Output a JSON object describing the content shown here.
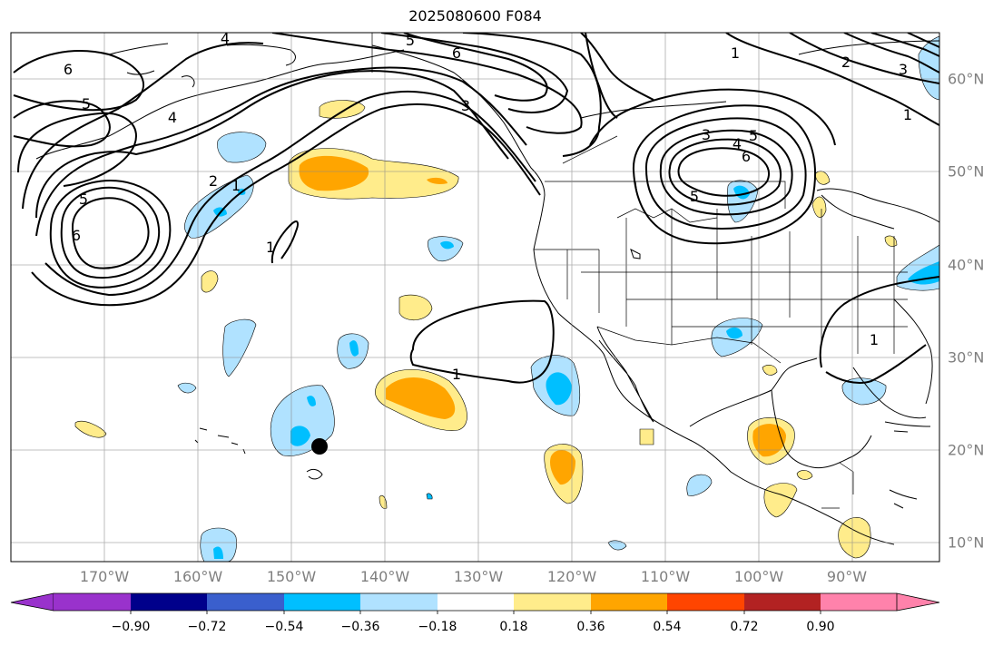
{
  "title": "2025080600 F084",
  "lon_labels": [
    "170°W",
    "160°W",
    "150°W",
    "140°W",
    "130°W",
    "120°W",
    "110°W",
    "100°W",
    "90°W"
  ],
  "lat_labels": [
    "60°N",
    "50°N",
    "40°N",
    "30°N",
    "20°N",
    "10°N"
  ],
  "colorbar": {
    "ticks": [
      "−0.90",
      "−0.72",
      "−0.54",
      "−0.36",
      "−0.18",
      "0.18",
      "0.36",
      "0.54",
      "0.72",
      "0.90"
    ],
    "colors": [
      "#9932cc",
      "#00008b",
      "#3a5fcd",
      "#00bfff",
      "#b0e2ff",
      "#ffffff",
      "#ffec8b",
      "#ffa500",
      "#ff4500",
      "#b22222",
      "#ff82ab"
    ]
  },
  "contour_labels": [
    "5",
    "6",
    "6",
    "5",
    "4",
    "2",
    "1",
    "5",
    "6",
    "1",
    "3",
    "1",
    "3",
    "4",
    "5",
    "6",
    "5",
    "4",
    "2",
    "3",
    "1",
    "1",
    "1"
  ],
  "shading_colors": {
    "light_blue": "#b0e2ff",
    "blue": "#00bfff",
    "light_yellow": "#ffec8b",
    "orange": "#ffa500"
  },
  "marker": "black-dot"
}
